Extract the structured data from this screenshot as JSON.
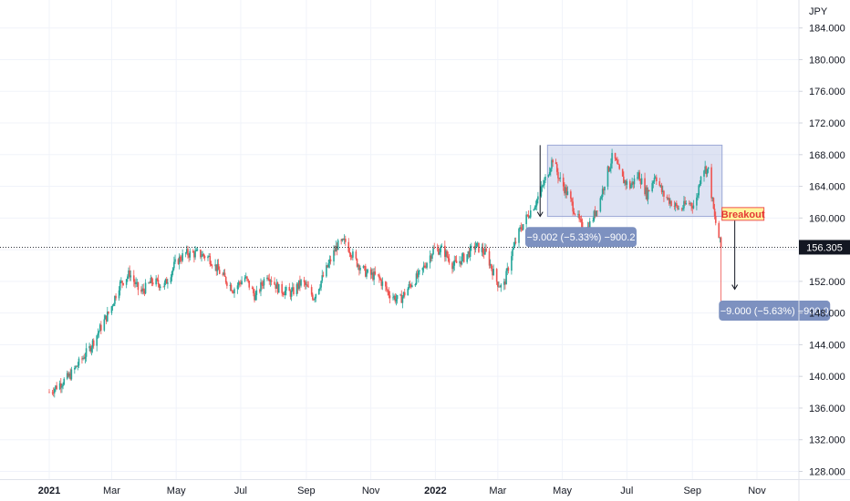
{
  "chart_data": {
    "type": "candlestick",
    "currency_label": "JPY",
    "price_ticks": [
      "184.000",
      "180.000",
      "176.000",
      "172.000",
      "168.000",
      "164.000",
      "160.000",
      "156.000",
      "152.000",
      "148.000",
      "144.000",
      "140.000",
      "136.000",
      "132.000",
      "128.000"
    ],
    "price_tick_values": [
      184,
      180,
      176,
      172,
      168,
      164,
      160,
      156,
      152,
      148,
      144,
      140,
      136,
      132,
      128
    ],
    "time_ticks": [
      {
        "label": "2021",
        "bold": true
      },
      {
        "label": "Mar",
        "bold": false
      },
      {
        "label": "May",
        "bold": false
      },
      {
        "label": "Jul",
        "bold": false
      },
      {
        "label": "Sep",
        "bold": false
      },
      {
        "label": "Nov",
        "bold": false
      },
      {
        "label": "2022",
        "bold": true
      },
      {
        "label": "Mar",
        "bold": false
      },
      {
        "label": "May",
        "bold": false
      },
      {
        "label": "Jul",
        "bold": false
      },
      {
        "label": "Sep",
        "bold": false
      },
      {
        "label": "Nov",
        "bold": false
      }
    ],
    "ylim": [
      126.0,
      188.0
    ],
    "last_price": "156.305",
    "last_price_value": 156.305,
    "colors": {
      "up": "#26a69a",
      "down": "#ef5350",
      "range_box": "#b6c1e4",
      "badge_bg": "#131722",
      "tag_bg": "#7d91c0"
    },
    "trend_points": [
      [
        "2021-01-01",
        138.0
      ],
      [
        "2021-01-20",
        140.0
      ],
      [
        "2021-02-08",
        143.5
      ],
      [
        "2021-02-28",
        148.5
      ],
      [
        "2021-03-08",
        151.5
      ],
      [
        "2021-03-18",
        153.0
      ],
      [
        "2021-03-28",
        150.5
      ],
      [
        "2021-04-08",
        152.0
      ],
      [
        "2021-04-20",
        151.5
      ],
      [
        "2021-05-01",
        154.5
      ],
      [
        "2021-05-10",
        155.5
      ],
      [
        "2021-05-22",
        155.5
      ],
      [
        "2021-06-01",
        155.0
      ],
      [
        "2021-06-12",
        153.0
      ],
      [
        "2021-06-24",
        151.0
      ],
      [
        "2021-07-05",
        152.5
      ],
      [
        "2021-07-15",
        150.0
      ],
      [
        "2021-07-26",
        153.0
      ],
      [
        "2021-08-06",
        151.0
      ],
      [
        "2021-08-18",
        150.5
      ],
      [
        "2021-08-28",
        152.0
      ],
      [
        "2021-09-08",
        150.0
      ],
      [
        "2021-09-20",
        153.5
      ],
      [
        "2021-09-30",
        156.5
      ],
      [
        "2021-10-08",
        157.0
      ],
      [
        "2021-10-18",
        154.5
      ],
      [
        "2021-10-28",
        153.0
      ],
      [
        "2021-11-08",
        152.5
      ],
      [
        "2021-11-18",
        150.5
      ],
      [
        "2021-11-28",
        149.5
      ],
      [
        "2021-12-08",
        151.5
      ],
      [
        "2021-12-18",
        153.0
      ],
      [
        "2021-12-30",
        156.0
      ],
      [
        "2022-01-08",
        156.0
      ],
      [
        "2022-01-18",
        154.0
      ],
      [
        "2022-01-28",
        155.0
      ],
      [
        "2022-02-08",
        156.5
      ],
      [
        "2022-02-18",
        155.5
      ],
      [
        "2022-02-28",
        152.0
      ],
      [
        "2022-03-06",
        151.0
      ],
      [
        "2022-03-14",
        155.5
      ],
      [
        "2022-03-22",
        158.5
      ],
      [
        "2022-03-30",
        160.5
      ],
      [
        "2022-04-06",
        162.0
      ],
      [
        "2022-04-14",
        164.5
      ],
      [
        "2022-04-22",
        167.5
      ],
      [
        "2022-04-28",
        165.0
      ],
      [
        "2022-05-06",
        163.0
      ],
      [
        "2022-05-14",
        160.5
      ],
      [
        "2022-05-22",
        158.0
      ],
      [
        "2022-05-30",
        160.0
      ],
      [
        "2022-06-06",
        162.5
      ],
      [
        "2022-06-12",
        165.5
      ],
      [
        "2022-06-18",
        168.0
      ],
      [
        "2022-06-26",
        165.0
      ],
      [
        "2022-07-04",
        164.0
      ],
      [
        "2022-07-12",
        165.5
      ],
      [
        "2022-07-20",
        163.0
      ],
      [
        "2022-07-28",
        165.5
      ],
      [
        "2022-08-04",
        163.0
      ],
      [
        "2022-08-12",
        162.0
      ],
      [
        "2022-08-20",
        161.0
      ],
      [
        "2022-08-28",
        162.0
      ],
      [
        "2022-09-04",
        161.5
      ],
      [
        "2022-09-10",
        166.5
      ],
      [
        "2022-09-16",
        166.0
      ],
      [
        "2022-09-22",
        160.0
      ],
      [
        "2022-09-28",
        156.3
      ]
    ],
    "annotations": {
      "range_box": {
        "x_from": "2022-04-17",
        "x_to": "2022-09-29",
        "y_from": 160.2,
        "y_to": 169.2
      },
      "measure_left": {
        "x": "2022-04-10",
        "y_from": 169.2,
        "y_to": 160.2
      },
      "measure_right": {
        "x": "2022-10-11",
        "y_from": 160.0,
        "y_to": 151.0
      },
      "breakout": {
        "x": "2022-10-11",
        "y": 160.4
      },
      "label_left": {
        "x": "2022-03-27",
        "y": 157.6
      },
      "label_right": {
        "x": "2022-09-26",
        "y": 148.3
      },
      "spike": {
        "x": "2022-09-28",
        "y_low": 149.5
      }
    },
    "breakout_label": "Breakout",
    "measure_left_label": "−9.002 (−5.33%) −900.2",
    "measure_right_label": "−9.000 (−5.63%) −900.0"
  }
}
